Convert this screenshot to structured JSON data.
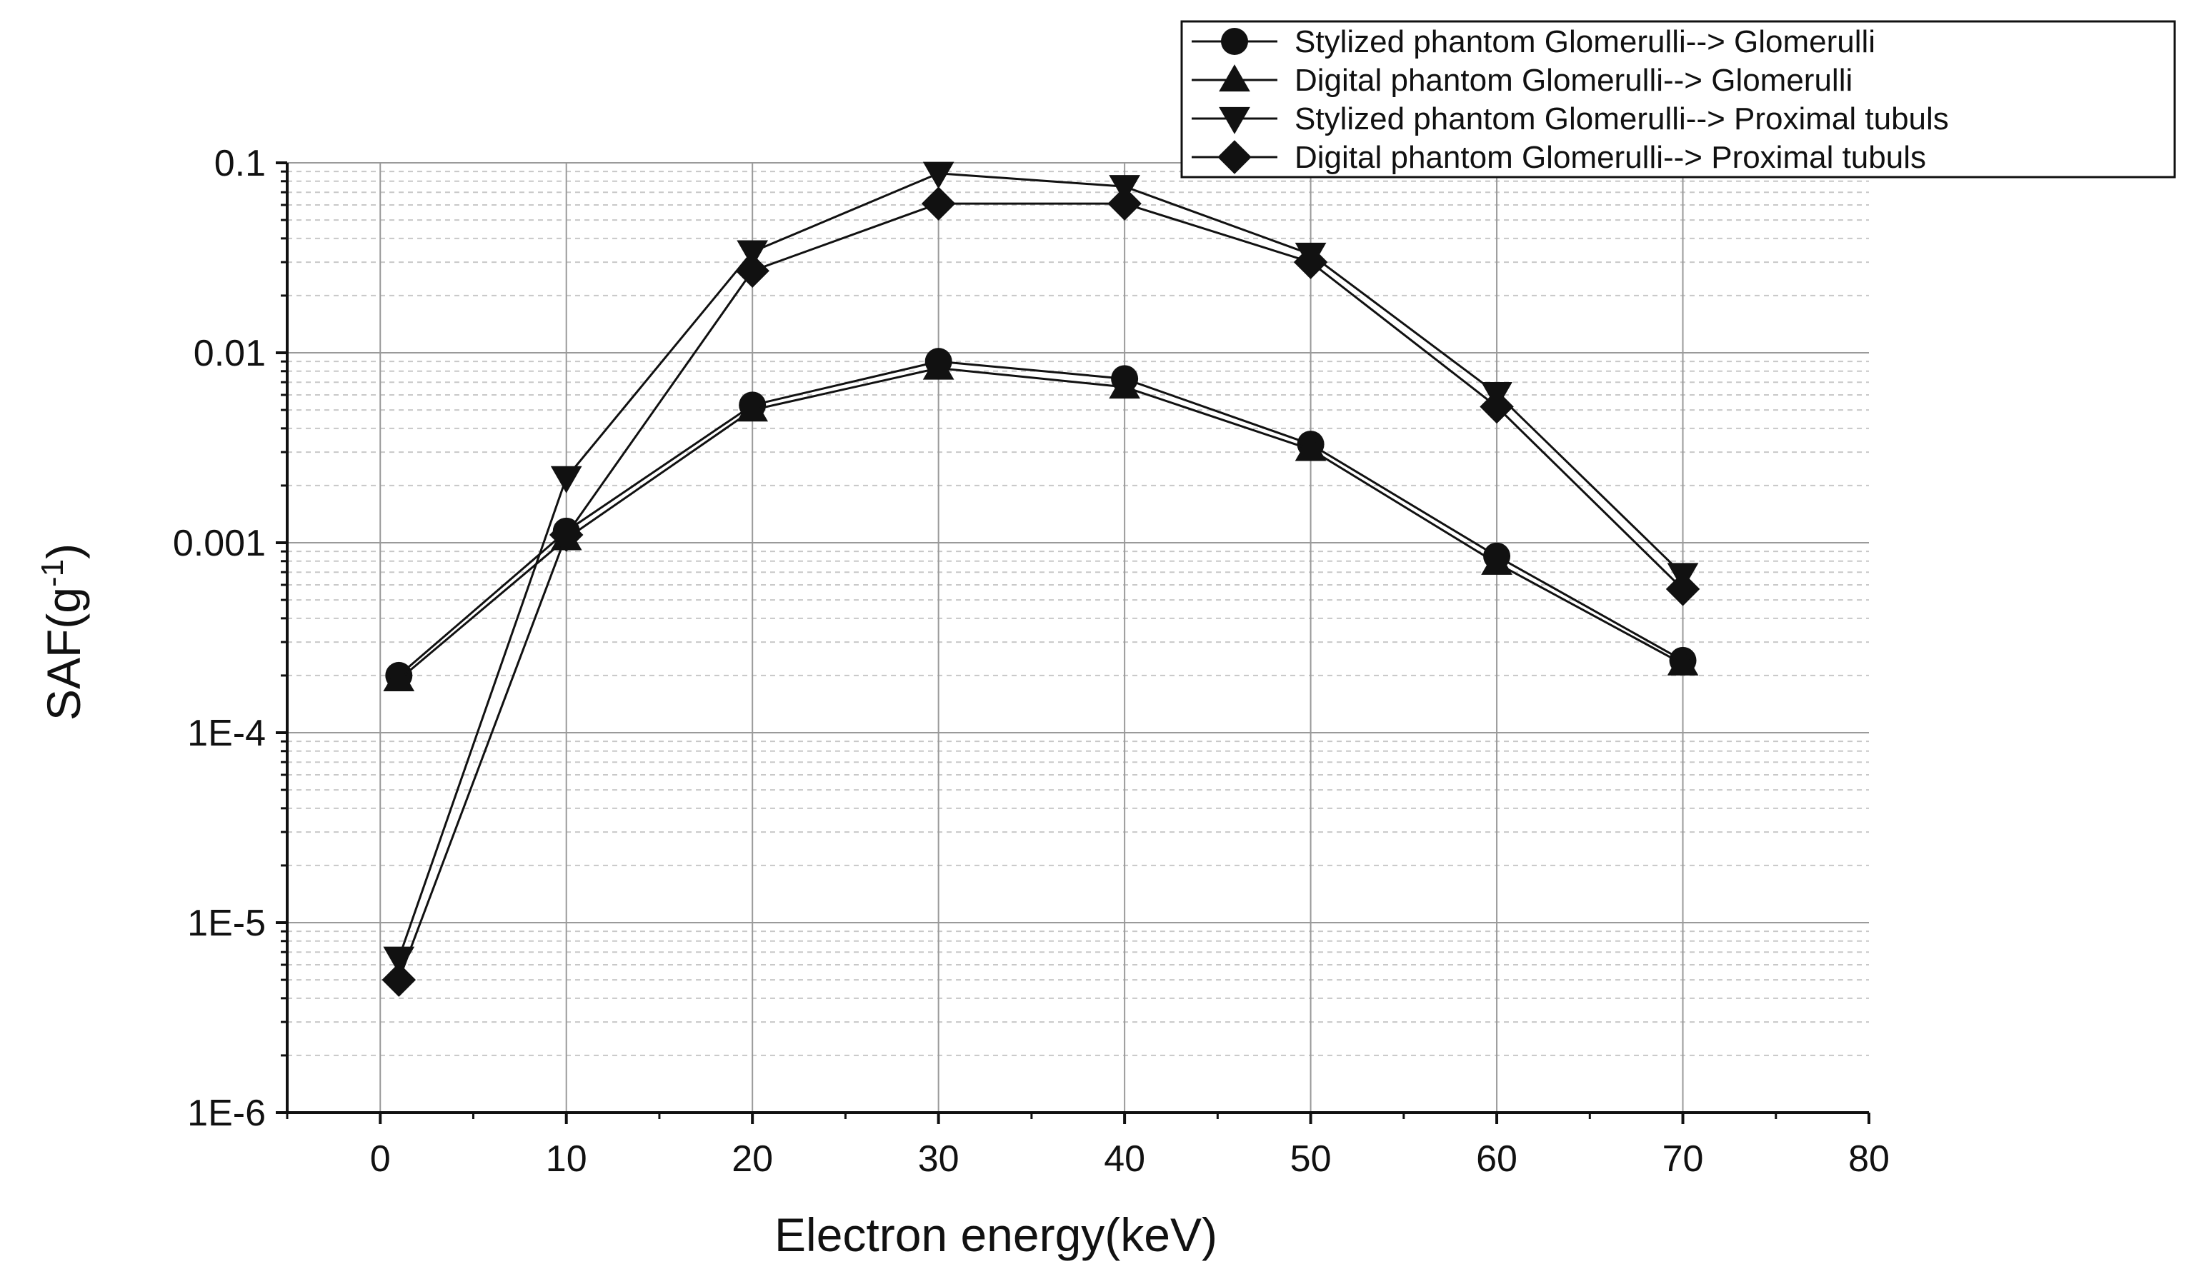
{
  "chart_data": {
    "type": "line",
    "title": "",
    "xlabel": "Electron energy(keV)",
    "ylabel_main": "SAF(g",
    "ylabel_sup": "-1",
    "ylabel_close": ")",
    "xlim": [
      -5,
      80
    ],
    "ylim": [
      1e-06,
      0.1
    ],
    "yscale": "log",
    "x_ticks": [
      0,
      10,
      20,
      30,
      40,
      50,
      60,
      70,
      80
    ],
    "x_tick_labels": [
      "0",
      "10",
      "20",
      "30",
      "40",
      "50",
      "60",
      "70",
      "80"
    ],
    "y_ticks": [
      1e-06,
      1e-05,
      0.0001,
      0.001,
      0.01,
      0.1
    ],
    "y_tick_labels": [
      "1E-6",
      "1E-5",
      "1E-4",
      "0.001",
      "0.01",
      "0.1"
    ],
    "grid": true,
    "legend_position": "top-right",
    "x": [
      1,
      10,
      20,
      30,
      40,
      50,
      60,
      70
    ],
    "series": [
      {
        "name": "Stylized phantom Glomerulli--> Glomerulli",
        "marker": "circle",
        "values": [
          0.0002,
          0.00115,
          0.0053,
          0.009,
          0.0073,
          0.0033,
          0.00085,
          0.00024
        ]
      },
      {
        "name": "Digital phantom  Glomerulli--> Glomerulli",
        "marker": "triangle-up",
        "values": [
          0.00019,
          0.00105,
          0.005,
          0.0083,
          0.0066,
          0.0031,
          0.00078,
          0.00023
        ]
      },
      {
        "name": "Stylized phantom Glomerulli--> Proximal tubuls",
        "marker": "triangle-down",
        "values": [
          6.5e-06,
          0.0022,
          0.034,
          0.088,
          0.075,
          0.033,
          0.0061,
          0.00068
        ]
      },
      {
        "name": "Digital phantom  Glomerulli--> Proximal tubuls",
        "marker": "diamond",
        "values": [
          5e-06,
          0.0011,
          0.027,
          0.061,
          0.061,
          0.03,
          0.0052,
          0.00057
        ]
      }
    ]
  }
}
